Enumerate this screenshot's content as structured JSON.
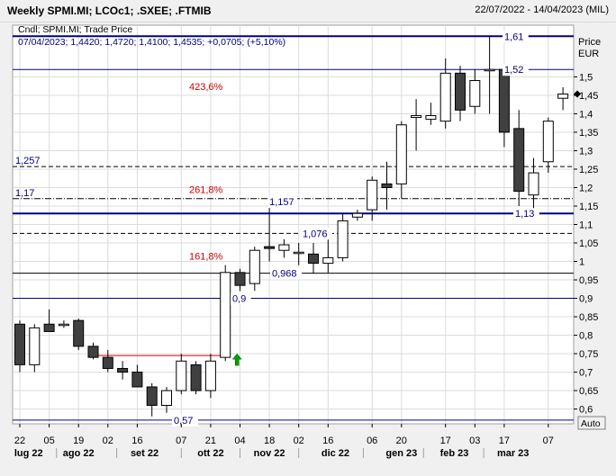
{
  "header": {
    "title": "Weekly SPMI.MI; LCOc1; .SXEE; .FTMIB",
    "date_range": "22/07/2022 - 14/04/2023 (MIL)"
  },
  "legend": {
    "line1": "Cndl; SPMI.MI; Trade Price",
    "line2": "07/04/2023; 1,4420; 1,4720; 1,4100; 1,4535; +0,0705; (+5,10%)"
  },
  "axis": {
    "unit_line1": "Price",
    "unit_line2": "EUR",
    "auto_label": "Auto"
  },
  "chart_data": {
    "type": "candlestick",
    "ylim": [
      0.56,
      1.64
    ],
    "y_ticks": [
      {
        "value": 0.6,
        "label": "0,6"
      },
      {
        "value": 0.65,
        "label": "0,65"
      },
      {
        "value": 0.7,
        "label": "0,7"
      },
      {
        "value": 0.75,
        "label": "0,75"
      },
      {
        "value": 0.8,
        "label": "0,8"
      },
      {
        "value": 0.85,
        "label": "0,85"
      },
      {
        "value": 0.9,
        "label": "0,9"
      },
      {
        "value": 0.95,
        "label": "0,95"
      },
      {
        "value": 1.0,
        "label": "1"
      },
      {
        "value": 1.05,
        "label": "1,05"
      },
      {
        "value": 1.1,
        "label": "1,1"
      },
      {
        "value": 1.15,
        "label": "1,15"
      },
      {
        "value": 1.2,
        "label": "1,2"
      },
      {
        "value": 1.25,
        "label": "1,25"
      },
      {
        "value": 1.3,
        "label": "1,3"
      },
      {
        "value": 1.35,
        "label": "1,35"
      },
      {
        "value": 1.4,
        "label": "1,4"
      },
      {
        "value": 1.45,
        "label": "1,45"
      },
      {
        "value": 1.5,
        "label": "1,5"
      }
    ],
    "x_day_labels": [
      "22",
      "05",
      "19",
      "02",
      "16",
      "07",
      "21",
      "04",
      "18",
      "02",
      "16",
      "06",
      "20",
      "17",
      "03",
      "17",
      "07"
    ],
    "x_day_weeks": [
      0,
      2,
      4,
      6,
      8,
      11,
      13,
      15,
      17,
      19,
      21,
      24,
      26,
      29,
      31,
      33,
      36
    ],
    "x_month_labels": [
      "lug 22",
      "ago 22",
      "set 22",
      "ott 22",
      "nov 22",
      "dic 22",
      "gen 23",
      "feb 23",
      "mar 23"
    ],
    "x_month_weeks": [
      0.6,
      4,
      8.5,
      13,
      17,
      21.5,
      26,
      29.6,
      33.6
    ],
    "candles": [
      {
        "week": 0,
        "date": "22/07/2022",
        "o": 0.83,
        "h": 0.84,
        "l": 0.7,
        "c": 0.72
      },
      {
        "week": 1,
        "date": "29/07/2022",
        "o": 0.72,
        "h": 0.83,
        "l": 0.7,
        "c": 0.82
      },
      {
        "week": 2,
        "date": "05/08/2022",
        "o": 0.83,
        "h": 0.87,
        "l": 0.81,
        "c": 0.81
      },
      {
        "week": 3,
        "date": "12/08/2022",
        "o": 0.83,
        "h": 0.84,
        "l": 0.82,
        "c": 0.83
      },
      {
        "week": 4,
        "date": "19/08/2022",
        "o": 0.84,
        "h": 0.845,
        "l": 0.76,
        "c": 0.77
      },
      {
        "week": 5,
        "date": "26/08/2022",
        "o": 0.77,
        "h": 0.78,
        "l": 0.735,
        "c": 0.74
      },
      {
        "week": 6,
        "date": "02/09/2022",
        "o": 0.74,
        "h": 0.76,
        "l": 0.7,
        "c": 0.71
      },
      {
        "week": 7,
        "date": "09/09/2022",
        "o": 0.71,
        "h": 0.73,
        "l": 0.68,
        "c": 0.7
      },
      {
        "week": 8,
        "date": "16/09/2022",
        "o": 0.7,
        "h": 0.72,
        "l": 0.66,
        "c": 0.66
      },
      {
        "week": 9,
        "date": "23/09/2022",
        "o": 0.66,
        "h": 0.67,
        "l": 0.58,
        "c": 0.61
      },
      {
        "week": 10,
        "date": "30/09/2022",
        "o": 0.61,
        "h": 0.66,
        "l": 0.59,
        "c": 0.65
      },
      {
        "week": 11,
        "date": "07/10/2022",
        "o": 0.65,
        "h": 0.75,
        "l": 0.64,
        "c": 0.73
      },
      {
        "week": 12,
        "date": "14/10/2022",
        "o": 0.72,
        "h": 0.73,
        "l": 0.64,
        "c": 0.65
      },
      {
        "week": 13,
        "date": "21/10/2022",
        "o": 0.65,
        "h": 0.75,
        "l": 0.63,
        "c": 0.73
      },
      {
        "week": 14,
        "date": "28/10/2022",
        "o": 0.74,
        "h": 0.99,
        "l": 0.73,
        "c": 0.97
      },
      {
        "week": 15,
        "date": "04/11/2022",
        "o": 0.97,
        "h": 0.98,
        "l": 0.92,
        "c": 0.935
      },
      {
        "week": 16,
        "date": "11/11/2022",
        "o": 0.94,
        "h": 1.04,
        "l": 0.92,
        "c": 1.03
      },
      {
        "week": 17,
        "date": "18/11/2022",
        "o": 1.04,
        "h": 1.157,
        "l": 1.0,
        "c": 1.035
      },
      {
        "week": 18,
        "date": "25/11/2022",
        "o": 1.03,
        "h": 1.06,
        "l": 1.01,
        "c": 1.045
      },
      {
        "week": 19,
        "date": "02/12/2022",
        "o": 1.025,
        "h": 1.05,
        "l": 0.99,
        "c": 1.025
      },
      {
        "week": 20,
        "date": "09/12/2022",
        "o": 1.02,
        "h": 1.05,
        "l": 0.968,
        "c": 0.995
      },
      {
        "week": 21,
        "date": "16/12/2022",
        "o": 0.995,
        "h": 1.08,
        "l": 0.97,
        "c": 1.01
      },
      {
        "week": 22,
        "date": "23/12/2022",
        "o": 1.01,
        "h": 1.13,
        "l": 1.0,
        "c": 1.11
      },
      {
        "week": 23,
        "date": "30/12/2022",
        "o": 1.12,
        "h": 1.14,
        "l": 1.11,
        "c": 1.13
      },
      {
        "week": 24,
        "date": "06/01/2023",
        "o": 1.14,
        "h": 1.23,
        "l": 1.11,
        "c": 1.22
      },
      {
        "week": 25,
        "date": "13/01/2023",
        "o": 1.21,
        "h": 1.27,
        "l": 1.14,
        "c": 1.2
      },
      {
        "week": 26,
        "date": "20/01/2023",
        "o": 1.21,
        "h": 1.38,
        "l": 1.17,
        "c": 1.37
      },
      {
        "week": 27,
        "date": "27/01/2023",
        "o": 1.39,
        "h": 1.44,
        "l": 1.3,
        "c": 1.395
      },
      {
        "week": 28,
        "date": "03/02/2023",
        "o": 1.385,
        "h": 1.43,
        "l": 1.37,
        "c": 1.395
      },
      {
        "week": 29,
        "date": "10/02/2023",
        "o": 1.38,
        "h": 1.55,
        "l": 1.36,
        "c": 1.51
      },
      {
        "week": 30,
        "date": "17/02/2023",
        "o": 1.51,
        "h": 1.53,
        "l": 1.38,
        "c": 1.41
      },
      {
        "week": 31,
        "date": "24/02/2023",
        "o": 1.42,
        "h": 1.52,
        "l": 1.4,
        "c": 1.49
      },
      {
        "week": 32,
        "date": "03/03/2023",
        "o": 1.52,
        "h": 1.61,
        "l": 1.4,
        "c": 1.52
      },
      {
        "week": 33,
        "date": "10/03/2023",
        "o": 1.52,
        "h": 1.53,
        "l": 1.31,
        "c": 1.35
      },
      {
        "week": 34,
        "date": "17/03/2023",
        "o": 1.36,
        "h": 1.41,
        "l": 1.15,
        "c": 1.19
      },
      {
        "week": 35,
        "date": "24/03/2023",
        "o": 1.18,
        "h": 1.28,
        "l": 1.13,
        "c": 1.24
      },
      {
        "week": 36,
        "date": "31/03/2023",
        "o": 1.27,
        "h": 1.39,
        "l": 1.24,
        "c": 1.38
      },
      {
        "week": 37,
        "date": "07/04/2023",
        "o": 1.442,
        "h": 1.472,
        "l": 1.41,
        "c": 1.4535
      }
    ],
    "horizontal_lines": [
      {
        "value": 1.61,
        "label": "1,61",
        "style": "solid-blue-thick",
        "label_pos": "right"
      },
      {
        "value": 1.52,
        "label": "1,52",
        "style": "solid-blue",
        "label_pos": "right"
      },
      {
        "value": 1.257,
        "label": "1,257",
        "style": "dashed",
        "label_pos": "left"
      },
      {
        "value": 1.17,
        "label": "1,17",
        "style": "dashdot",
        "label_pos": "left"
      },
      {
        "value": 1.13,
        "label": "1,13",
        "style": "solid-blue-thick",
        "label_pos": "right"
      },
      {
        "value": 1.076,
        "label": "1,076",
        "style": "dashed",
        "label_pos": "mid"
      },
      {
        "value": 0.968,
        "label": "0,968",
        "style": "solid-black",
        "label_pos": "mid"
      },
      {
        "value": 0.9,
        "label": "0,9",
        "style": "solid-blue",
        "label_pos": "mid"
      },
      {
        "value": 0.57,
        "label": "0,57",
        "style": "solid-blue",
        "label_pos": "mid"
      }
    ],
    "fib_labels": [
      {
        "value": 1.46,
        "label": "423,6%"
      },
      {
        "value": 1.18,
        "label": "261,8%"
      },
      {
        "value": 1.0,
        "label": "161,8%"
      }
    ],
    "annotations": [
      {
        "value": 1.157,
        "label": "1,157",
        "week": 17
      }
    ],
    "red_trend": {
      "from_week": 5,
      "to_week": 14,
      "value": 0.745
    },
    "arrow": {
      "week": 14.8,
      "value": 0.74
    },
    "last_price_marker": 1.4535
  },
  "colors": {
    "candle_up": "#ffffff",
    "candle_down": "#404040",
    "blue_line": "#000080",
    "fib_red": "#cc0000",
    "arrow_green": "#00a000",
    "plot_bg": "#ffffff",
    "grid": "#dcdcdc"
  }
}
